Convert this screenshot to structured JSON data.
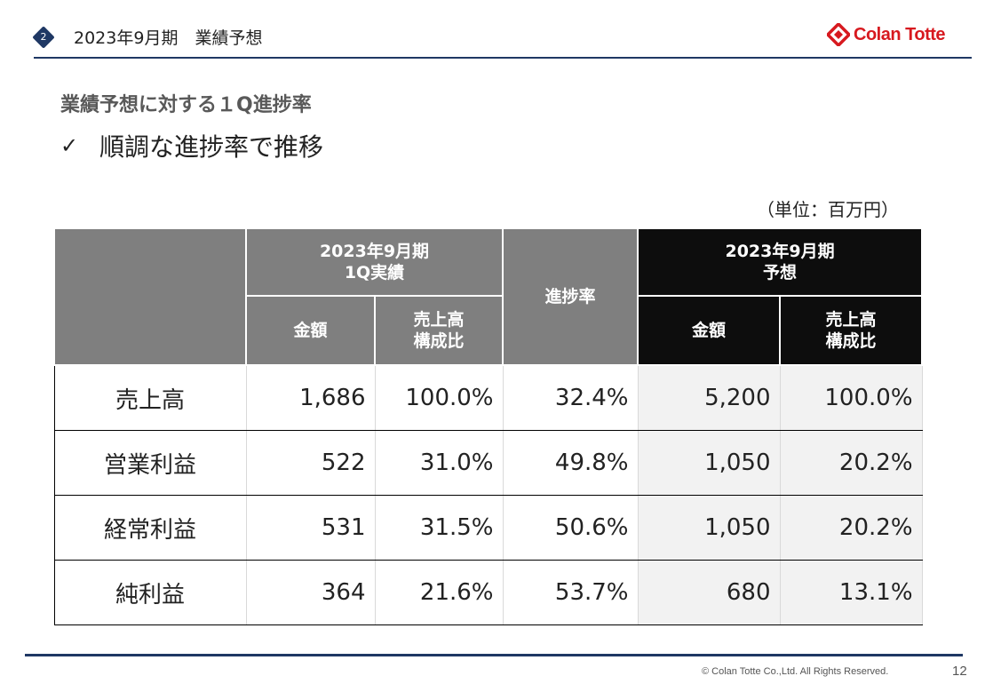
{
  "header": {
    "section_number": "2",
    "title": "2023年9月期　業績予想",
    "logo_text": "Colan Totte",
    "accent_color": "#1f3864",
    "logo_color": "#d7191f"
  },
  "subtitle": "業績予想に対する１Q進捗率",
  "bullet": {
    "mark": "✓",
    "text": "順調な進捗率で推移"
  },
  "unit": "（単位：百万円）",
  "table": {
    "header": {
      "actual_group": "2023年9月期\n1Q実績",
      "progress": "進捗率",
      "forecast_group": "2023年9月期\n予想",
      "amount": "金額",
      "ratio": "売上高\n構成比"
    },
    "rows": [
      {
        "label": "売上高",
        "actual": "1,686",
        "actual_ratio": "100.0%",
        "progress": "32.4%",
        "forecast": "5,200",
        "forecast_ratio": "100.0%"
      },
      {
        "label": "営業利益",
        "actual": "522",
        "actual_ratio": "31.0%",
        "progress": "49.8%",
        "forecast": "1,050",
        "forecast_ratio": "20.2%"
      },
      {
        "label": "経常利益",
        "actual": "531",
        "actual_ratio": "31.5%",
        "progress": "50.6%",
        "forecast": "1,050",
        "forecast_ratio": "20.2%"
      },
      {
        "label": "純利益",
        "actual": "364",
        "actual_ratio": "21.6%",
        "progress": "53.7%",
        "forecast": "680",
        "forecast_ratio": "13.1%"
      }
    ]
  },
  "footer": {
    "copyright": "© Colan Totte Co.,Ltd. All Rights Reserved.",
    "page_number": "12"
  }
}
